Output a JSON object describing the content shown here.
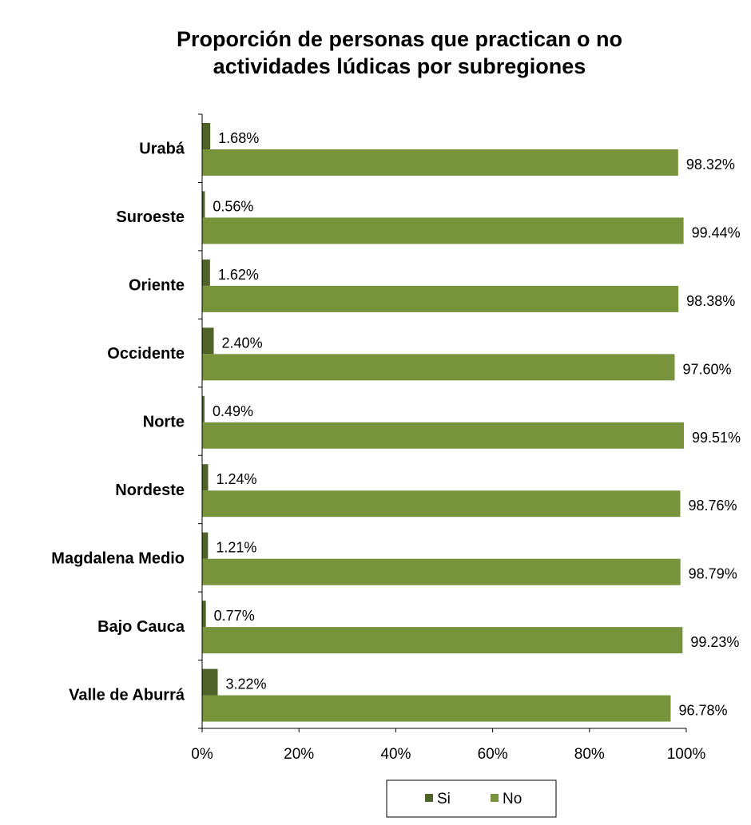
{
  "chart_data": {
    "type": "bar",
    "orientation": "horizontal",
    "title": [
      "Proporción de personas que practican o no",
      "actividades lúdicas por subregiones"
    ],
    "categories": [
      "Urabá",
      "Suroeste",
      "Oriente",
      "Occidente",
      "Norte",
      "Nordeste",
      "Magdalena Medio",
      "Bajo Cauca",
      "Valle de Aburrá"
    ],
    "series": [
      {
        "name": "Si",
        "color": "#4f6228",
        "values": [
          1.68,
          0.56,
          1.62,
          2.4,
          0.49,
          1.24,
          1.21,
          0.77,
          3.22
        ],
        "labels": [
          "1.68%",
          "0.56%",
          "1.62%",
          "2.40%",
          "0.49%",
          "1.24%",
          "1.21%",
          "0.77%",
          "3.22%"
        ]
      },
      {
        "name": "No",
        "color": "#77933c",
        "values": [
          98.32,
          99.44,
          98.38,
          97.6,
          99.51,
          98.76,
          98.79,
          99.23,
          96.78
        ],
        "labels": [
          "98.32%",
          "99.44%",
          "98.38%",
          "97.60%",
          "99.51%",
          "98.76%",
          "98.79%",
          "99.23%",
          "96.78%"
        ]
      }
    ],
    "xlim": [
      0,
      100
    ],
    "xticks": [
      "0%",
      "20%",
      "40%",
      "60%",
      "80%",
      "100%"
    ],
    "xtick_values": [
      0,
      20,
      40,
      60,
      80,
      100
    ],
    "legend_position": "bottom",
    "grid": false
  }
}
